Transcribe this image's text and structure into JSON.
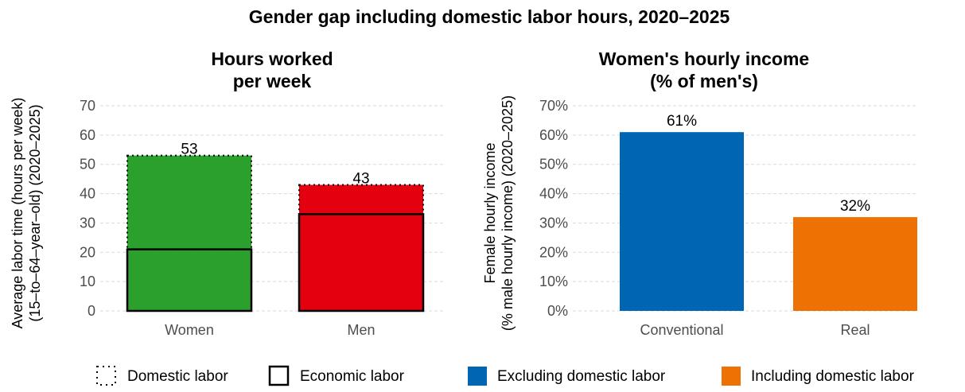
{
  "title": "Gender gap including domestic labor hours, 2020–2025",
  "chart_data": [
    {
      "type": "bar",
      "stacked": true,
      "title_lines": [
        "Hours worked",
        "per week"
      ],
      "ylabel_lines": [
        "Average labor time (hours per week)",
        "(15–to–64–year–old) (2020–2025)"
      ],
      "xlabel": "",
      "categories": [
        "Women",
        "Men"
      ],
      "ylim": [
        0,
        70
      ],
      "yticks": [
        0,
        10,
        20,
        30,
        40,
        50,
        60,
        70
      ],
      "grid": true,
      "series": [
        {
          "name": "Economic labor",
          "values": [
            21,
            33
          ],
          "border": "solid"
        },
        {
          "name": "Domestic labor",
          "values": [
            32,
            10
          ],
          "border": "dotted"
        }
      ],
      "totals": [
        53,
        43
      ],
      "total_labels": [
        "53",
        "43"
      ],
      "bar_colors": [
        "#2ca02c",
        "#e3000f"
      ],
      "legend": [
        {
          "label": "Domestic labor",
          "style": "dotted"
        },
        {
          "label": "Economic labor",
          "style": "solid"
        }
      ],
      "legend_position": "bottom"
    },
    {
      "type": "bar",
      "title_lines": [
        "Women's hourly income",
        "(% of men's)"
      ],
      "ylabel_lines": [
        "Female hourly income",
        "(% male hourly income) (2020–2025)"
      ],
      "xlabel": "",
      "categories": [
        "Conventional",
        "Real"
      ],
      "values": [
        61,
        32
      ],
      "value_labels": [
        "61%",
        "32%"
      ],
      "ylim": [
        0,
        70
      ],
      "yticks": [
        0,
        10,
        20,
        30,
        40,
        50,
        60,
        70
      ],
      "ytick_labels": [
        "0%",
        "10%",
        "20%",
        "30%",
        "40%",
        "50%",
        "60%",
        "70%"
      ],
      "grid": true,
      "bar_colors": [
        "#0066b3",
        "#ee7203"
      ],
      "legend": [
        {
          "label": "Excluding domestic labor",
          "color": "#0066b3"
        },
        {
          "label": "Including domestic labor",
          "color": "#ee7203"
        }
      ],
      "legend_position": "bottom"
    }
  ]
}
